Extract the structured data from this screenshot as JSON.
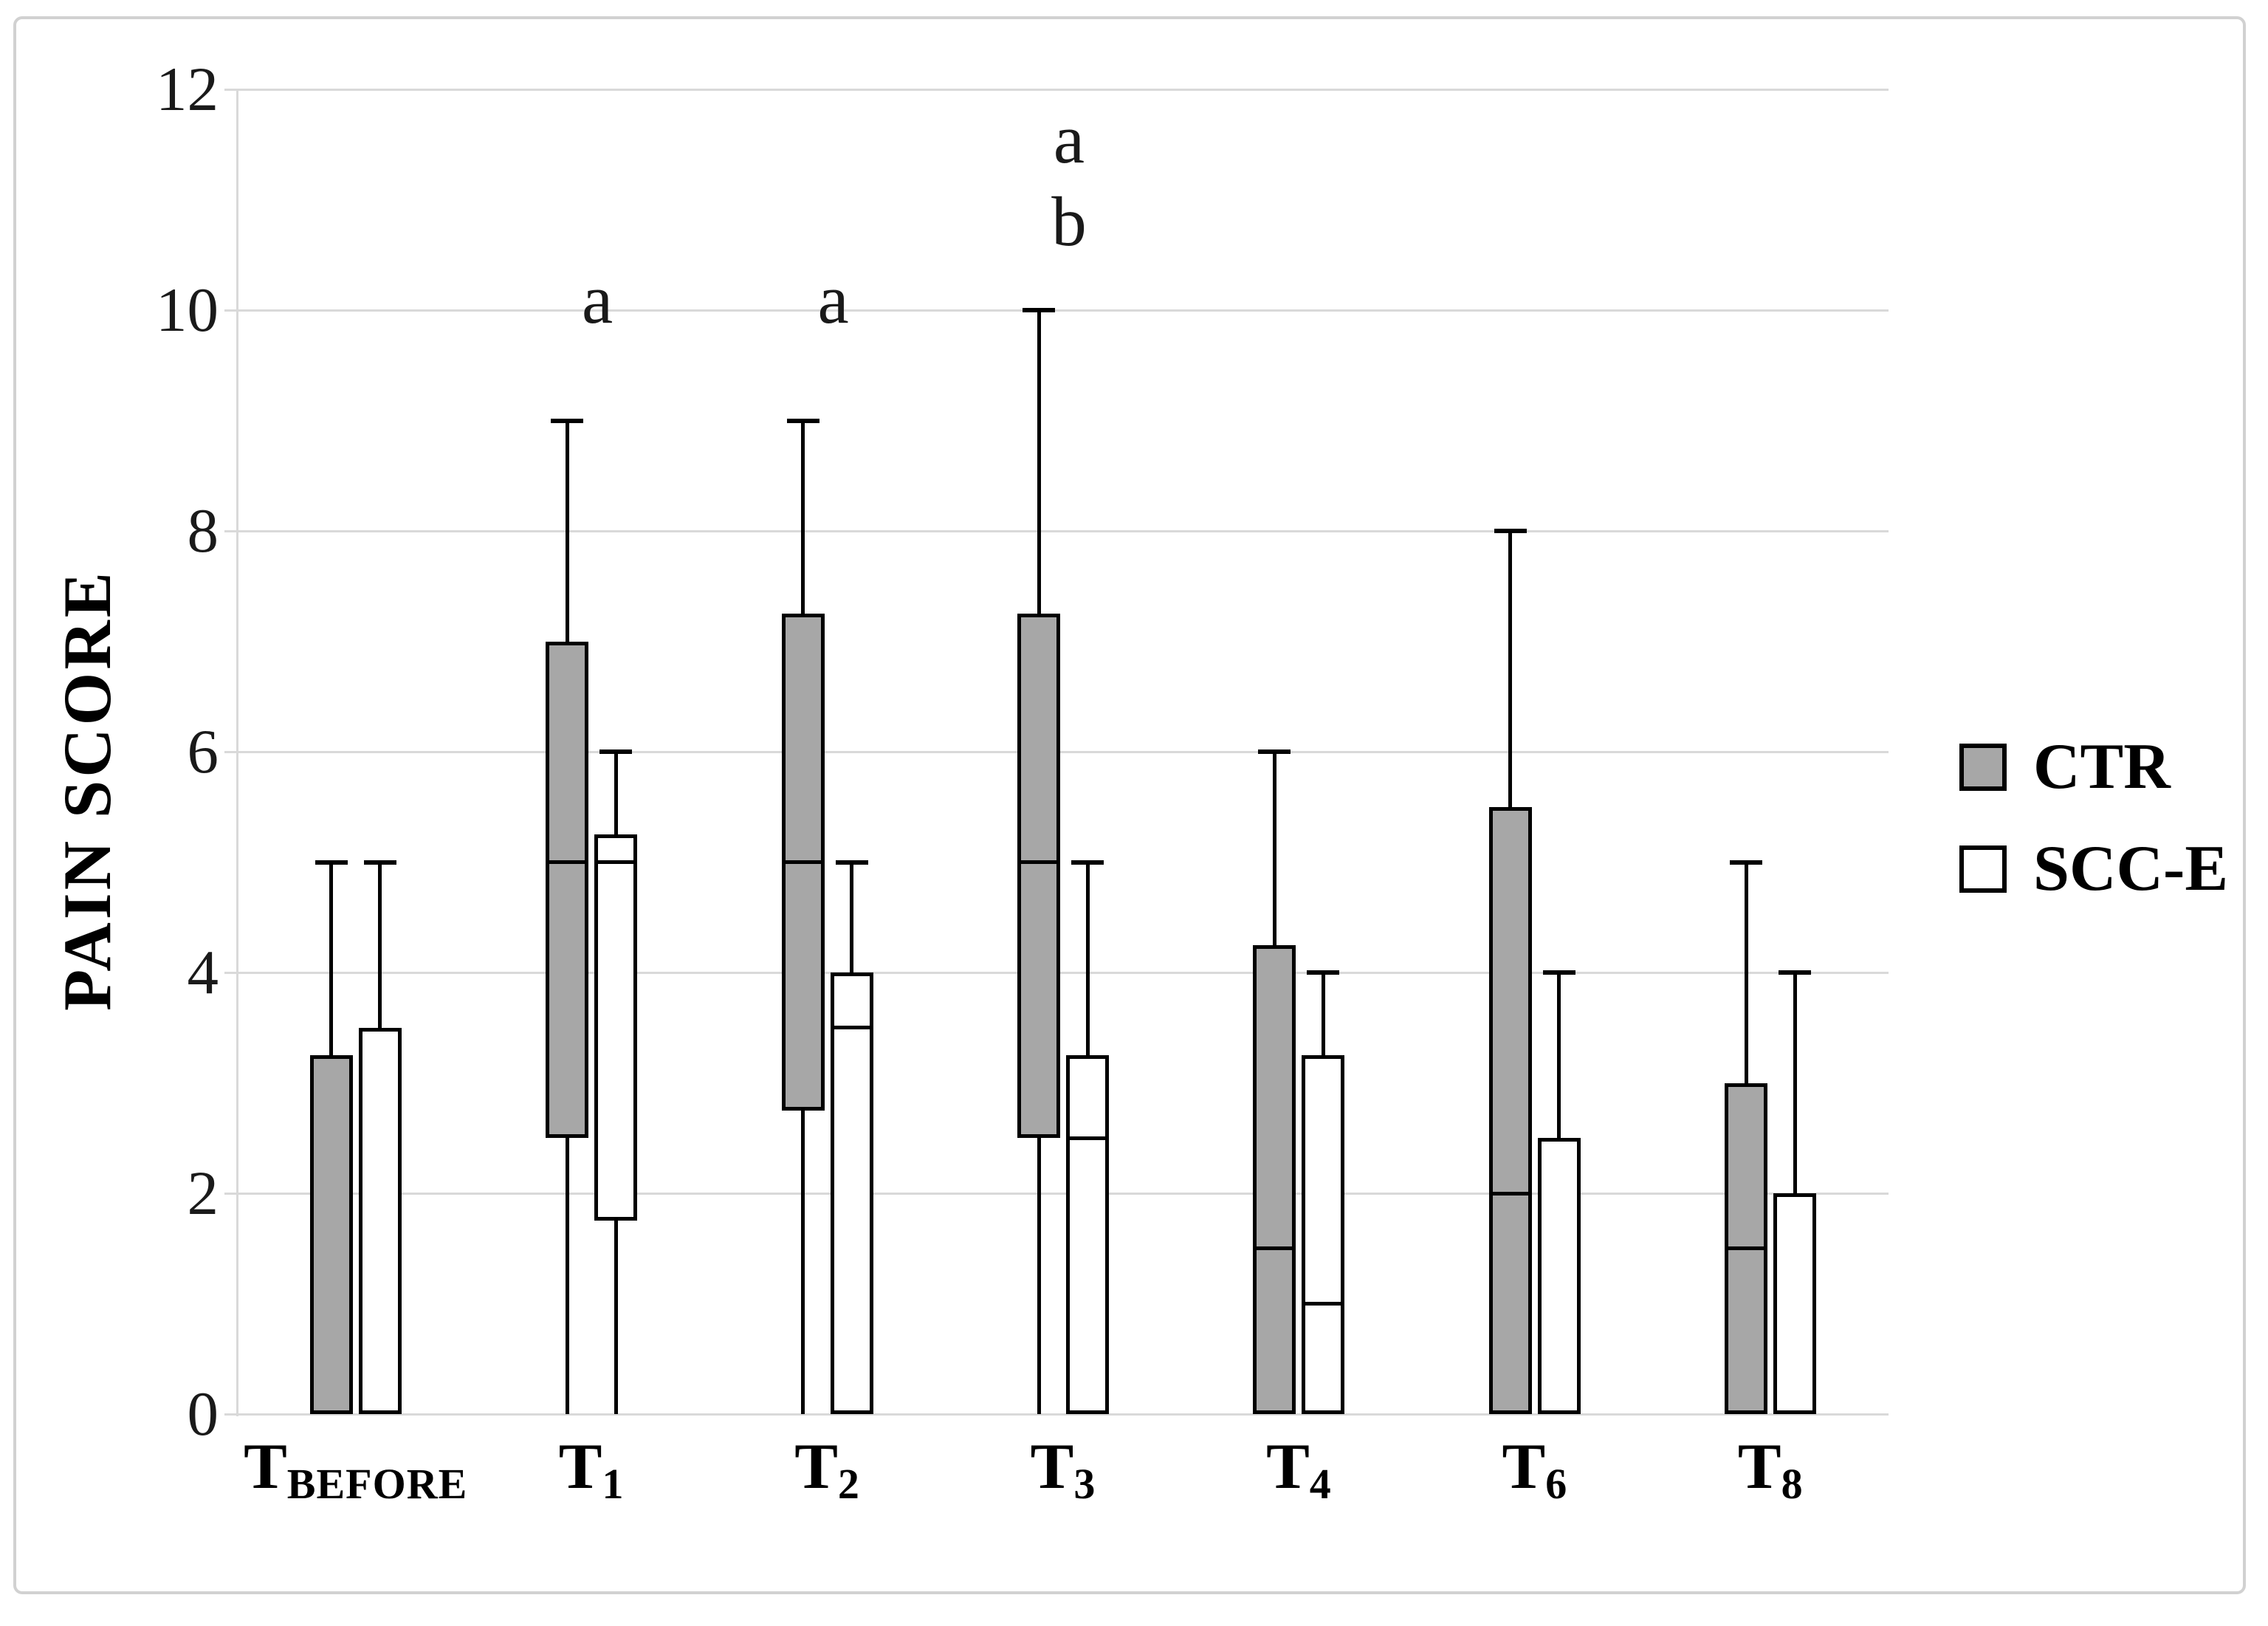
{
  "chart_data": {
    "type": "boxplot",
    "title": "",
    "ylabel": "PAIN SCORE",
    "xlabel": "",
    "ylim": [
      0,
      12
    ],
    "yticks": [
      0,
      2,
      4,
      6,
      8,
      10,
      12
    ],
    "grid": "horizontal",
    "legend_position": "right",
    "categories": [
      {
        "main": "T",
        "sub": "BEFORE"
      },
      {
        "main": "T",
        "sub": "1"
      },
      {
        "main": "T",
        "sub": "2"
      },
      {
        "main": "T",
        "sub": "3"
      },
      {
        "main": "T",
        "sub": "4"
      },
      {
        "main": "T",
        "sub": "6"
      },
      {
        "main": "T",
        "sub": "8"
      }
    ],
    "colors": {
      "ctr_fill": "#a7a7a7",
      "scce_fill": "#ffffff",
      "stroke": "#000000",
      "gridline": "#d9d9d9",
      "figure_border": "#d1d1d1"
    },
    "series": [
      {
        "name": "CTR",
        "fill": "#a7a7a7",
        "boxes": [
          {
            "q1": 0,
            "median": null,
            "q3": 3.25,
            "whisker_high": 5,
            "whisker_low": null
          },
          {
            "q1": 2.5,
            "median": 5,
            "q3": 7,
            "whisker_high": 9,
            "whisker_low": 0
          },
          {
            "q1": 2.75,
            "median": 5,
            "q3": 7.25,
            "whisker_high": 9,
            "whisker_low": 0
          },
          {
            "q1": 2.5,
            "median": 5,
            "q3": 7.25,
            "whisker_high": 10,
            "whisker_low": 0
          },
          {
            "q1": 0,
            "median": 1.5,
            "q3": 4.25,
            "whisker_high": 6,
            "whisker_low": null
          },
          {
            "q1": 0,
            "median": 2,
            "q3": 5.5,
            "whisker_high": 8,
            "whisker_low": null
          },
          {
            "q1": 0,
            "median": 1.5,
            "q3": 3,
            "whisker_high": 5,
            "whisker_low": null
          }
        ]
      },
      {
        "name": "SCC-E",
        "fill": "#ffffff",
        "boxes": [
          {
            "q1": 0,
            "median": null,
            "q3": 3.5,
            "whisker_high": 5,
            "whisker_low": null
          },
          {
            "q1": 1.75,
            "median": 5,
            "q3": 5.25,
            "whisker_high": 6,
            "whisker_low": 0
          },
          {
            "q1": 0,
            "median": 3.5,
            "q3": 4,
            "whisker_high": 5,
            "whisker_low": null
          },
          {
            "q1": 0,
            "median": 2.5,
            "q3": 3.25,
            "whisker_high": 5,
            "whisker_low": null
          },
          {
            "q1": 0,
            "median": 1,
            "q3": 3.25,
            "whisker_high": 4,
            "whisker_low": null
          },
          {
            "q1": 0,
            "median": null,
            "q3": 2.5,
            "whisker_high": 4,
            "whisker_low": null
          },
          {
            "q1": 0,
            "median": null,
            "q3": 2,
            "whisker_high": 4,
            "whisker_low": null
          }
        ]
      }
    ],
    "annotations": [
      {
        "text": "a",
        "category_index": 1,
        "y": 10.1
      },
      {
        "text": "a",
        "category_index": 2,
        "y": 10.1
      },
      {
        "text": "a",
        "category_index": 3,
        "y": 11.55
      },
      {
        "text": "b",
        "category_index": 3,
        "y": 10.8
      }
    ]
  }
}
